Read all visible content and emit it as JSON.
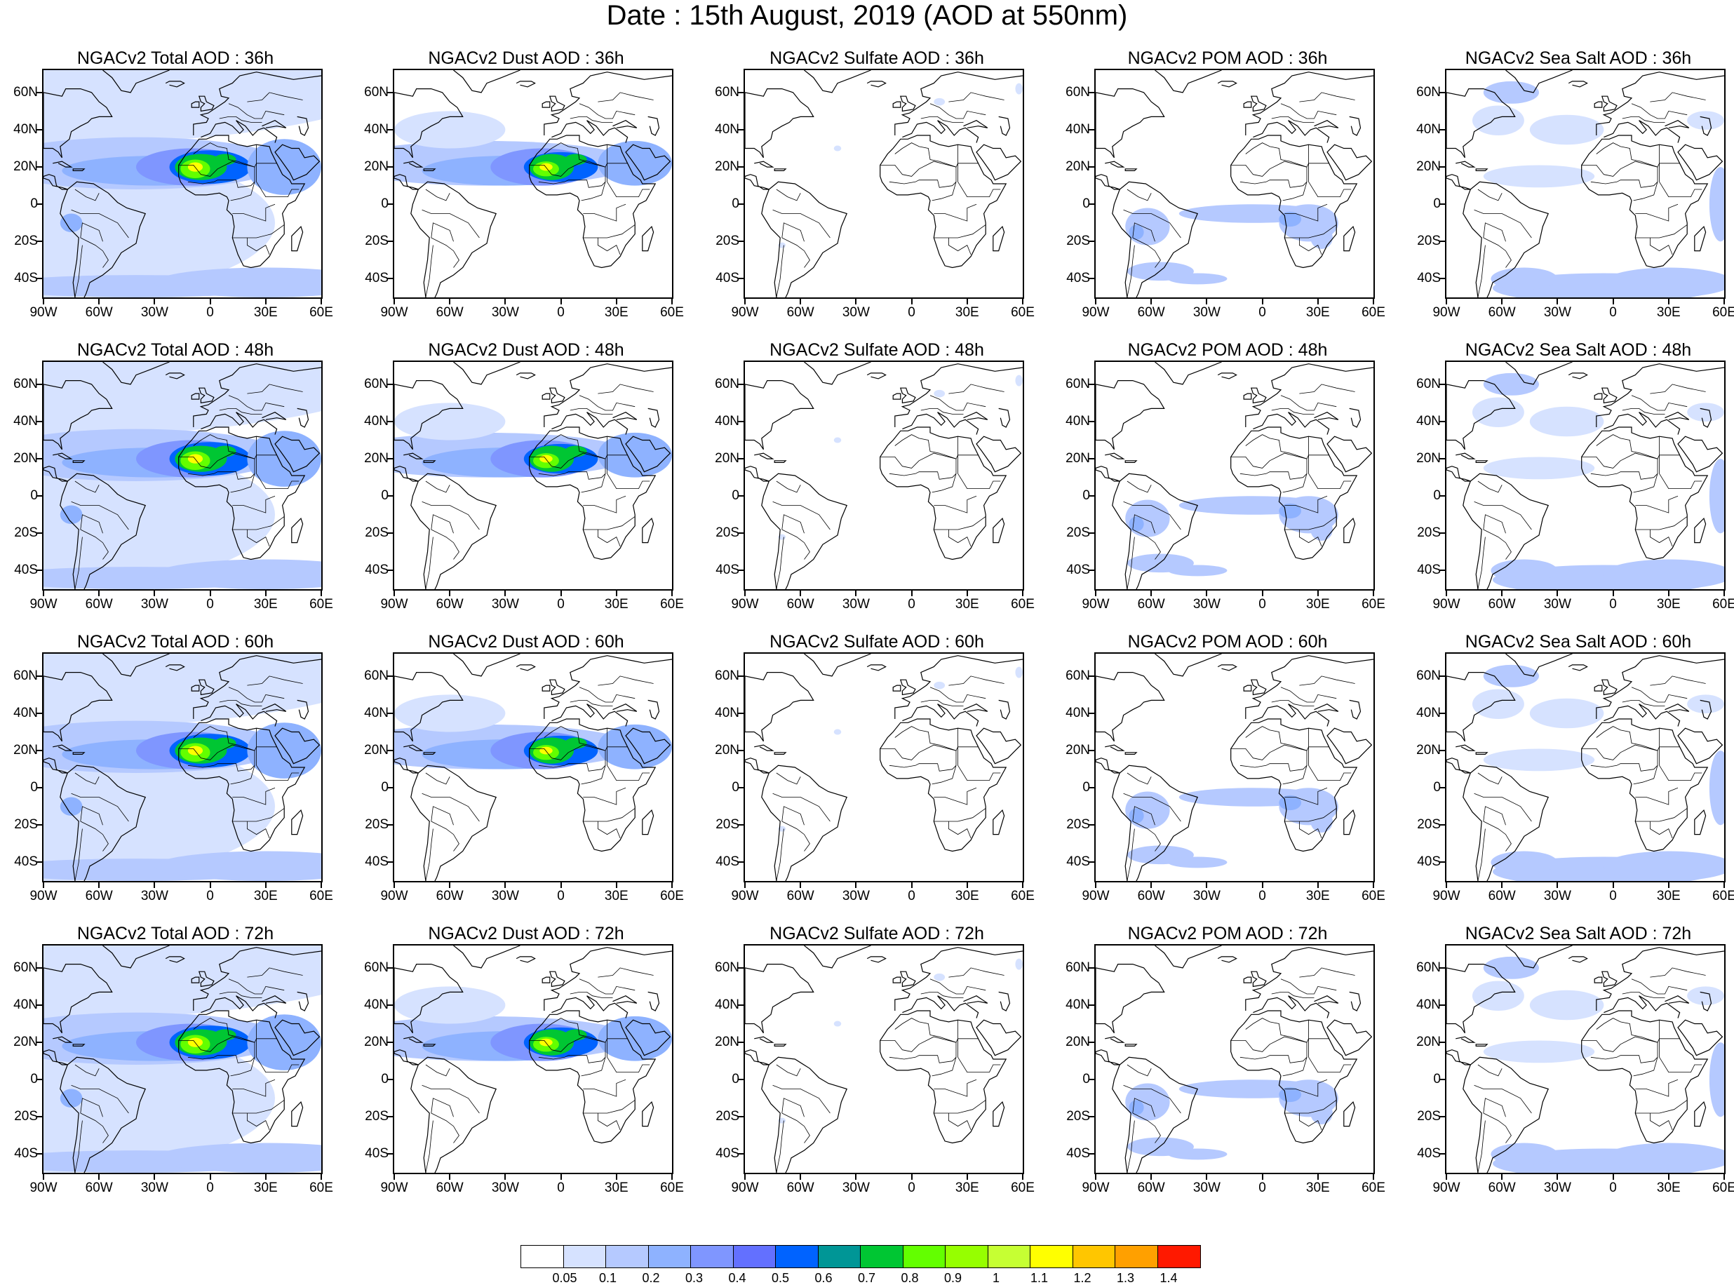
{
  "title": "Date : 15th August, 2019 (AOD at 550nm)",
  "panels": [
    {
      "title": "NGACv2 Total AOD : 36h",
      "field": "total"
    },
    {
      "title": "NGACv2 Dust AOD : 36h",
      "field": "dust"
    },
    {
      "title": "NGACv2 Sulfate AOD : 36h",
      "field": "sulfate"
    },
    {
      "title": "NGACv2 POM AOD : 36h",
      "field": "pom"
    },
    {
      "title": "NGACv2 Sea Salt AOD : 36h",
      "field": "seasalt"
    },
    {
      "title": "NGACv2 Total AOD : 48h",
      "field": "total"
    },
    {
      "title": "NGACv2 Dust AOD : 48h",
      "field": "dust"
    },
    {
      "title": "NGACv2 Sulfate AOD : 48h",
      "field": "sulfate"
    },
    {
      "title": "NGACv2 POM AOD : 48h",
      "field": "pom"
    },
    {
      "title": "NGACv2 Sea Salt AOD : 48h",
      "field": "seasalt"
    },
    {
      "title": "NGACv2 Total AOD : 60h",
      "field": "total"
    },
    {
      "title": "NGACv2 Dust AOD : 60h",
      "field": "dust"
    },
    {
      "title": "NGACv2 Sulfate AOD : 60h",
      "field": "sulfate"
    },
    {
      "title": "NGACv2 POM AOD : 60h",
      "field": "pom"
    },
    {
      "title": "NGACv2 Sea Salt AOD : 60h",
      "field": "seasalt"
    },
    {
      "title": "NGACv2 Total AOD : 72h",
      "field": "total"
    },
    {
      "title": "NGACv2 Dust AOD : 72h",
      "field": "dust"
    },
    {
      "title": "NGACv2 Sulfate AOD : 72h",
      "field": "sulfate"
    },
    {
      "title": "NGACv2 POM AOD : 72h",
      "field": "pom"
    },
    {
      "title": "NGACv2 Sea Salt  AOD : 72h",
      "field": "seasalt"
    }
  ],
  "axes": {
    "lon_ticks": [
      "90W",
      "60W",
      "30W",
      "0",
      "30E",
      "60E"
    ],
    "lon_values": [
      -90,
      -60,
      -30,
      0,
      30,
      60
    ],
    "lat_ticks": [
      "60N",
      "40N",
      "20N",
      "0",
      "20S",
      "40S"
    ],
    "lat_values": [
      60,
      40,
      20,
      0,
      -20,
      -40
    ],
    "lon_range": [
      -90,
      60
    ],
    "lat_range": [
      -50,
      72
    ]
  },
  "colorbar": {
    "labels": [
      "0.05",
      "0.1",
      "0.2",
      "0.3",
      "0.4",
      "0.5",
      "0.6",
      "0.7",
      "0.8",
      "0.9",
      "1",
      "1.1",
      "1.2",
      "1.3",
      "1.4"
    ],
    "colors": [
      "#ffffff",
      "#d6e2ff",
      "#b5c9ff",
      "#8eb2ff",
      "#7f96ff",
      "#6370ff",
      "#0063ff",
      "#009696",
      "#00c633",
      "#63ff00",
      "#96ff00",
      "#c6ff33",
      "#ffff00",
      "#ffc600",
      "#ffa000",
      "#ff7c00",
      "#ff1900"
    ]
  }
}
